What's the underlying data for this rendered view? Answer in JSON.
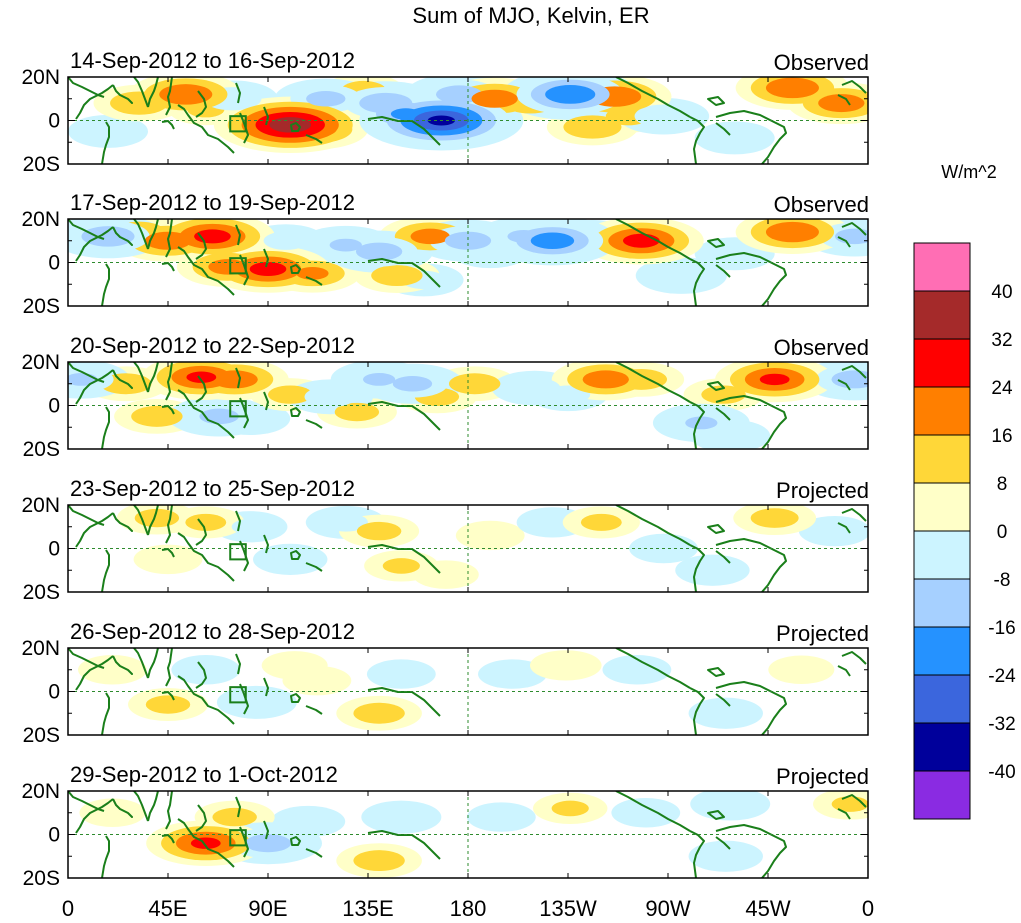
{
  "chart_data": {
    "type": "heatmap",
    "title": "Sum of MJO, Kelvin, ER",
    "units_label": "W/m^2",
    "x_tick_labels": [
      "0",
      "45E",
      "90E",
      "135E",
      "180",
      "135W",
      "90W",
      "45W",
      "0"
    ],
    "x_tick_lons": [
      0,
      45,
      90,
      135,
      180,
      225,
      270,
      315,
      360
    ],
    "y_tick_labels": [
      "20N",
      "0",
      "20S"
    ],
    "y_tick_lats": [
      20,
      0,
      -20
    ],
    "colorbar": {
      "levels": [
        "40",
        "32",
        "24",
        "16",
        "8",
        "0",
        "-8",
        "-16",
        "-24",
        "-32",
        "-40"
      ],
      "colors": [
        "#ff6eb4",
        "#a52a2a",
        "#ff0000",
        "#ff7f00",
        "#ffd738",
        "#ffffc8",
        "#ccf4ff",
        "#a6d0ff",
        "#2592ff",
        "#3b66dd",
        "#00009b",
        "#8a2be2"
      ]
    },
    "panels": [
      {
        "date_range": "14-Sep-2012 to 16-Sep-2012",
        "label": "Observed"
      },
      {
        "date_range": "17-Sep-2012 to 19-Sep-2012",
        "label": "Observed"
      },
      {
        "date_range": "20-Sep-2012 to 22-Sep-2012",
        "label": "Observed"
      },
      {
        "date_range": "23-Sep-2012 to 25-Sep-2012",
        "label": "Projected"
      },
      {
        "date_range": "26-Sep-2012 to 28-Sep-2012",
        "label": "Projected"
      },
      {
        "date_range": "29-Sep-2012 to 1-Oct-2012",
        "label": "Projected"
      }
    ],
    "anomalies": [
      [
        {
          "lon": 32,
          "lat": 8,
          "v": 14
        },
        {
          "lon": 53,
          "lat": 12,
          "v": 22
        },
        {
          "lon": 62,
          "lat": 5,
          "v": 8
        },
        {
          "lon": 74,
          "lat": 10,
          "v": -14
        },
        {
          "lon": 88,
          "lat": 3,
          "v": 9
        },
        {
          "lon": 100,
          "lat": -2,
          "v": 36
        },
        {
          "lon": 112,
          "lat": -4,
          "v": 18
        },
        {
          "lon": 116,
          "lat": 10,
          "v": -18
        },
        {
          "lon": 133,
          "lat": 14,
          "v": 10
        },
        {
          "lon": 143,
          "lat": 8,
          "v": -22
        },
        {
          "lon": 152,
          "lat": 3,
          "v": -24
        },
        {
          "lon": 168,
          "lat": 0,
          "v": -40
        },
        {
          "lon": 176,
          "lat": 12,
          "v": -20
        },
        {
          "lon": 192,
          "lat": 10,
          "v": 20
        },
        {
          "lon": 208,
          "lat": 8,
          "v": 12
        },
        {
          "lon": 226,
          "lat": 12,
          "v": -30
        },
        {
          "lon": 246,
          "lat": 11,
          "v": 22
        },
        {
          "lon": 252,
          "lat": 2,
          "v": 10
        },
        {
          "lon": 236,
          "lat": -3,
          "v": 14
        },
        {
          "lon": 268,
          "lat": 2,
          "v": -14
        },
        {
          "lon": 300,
          "lat": -8,
          "v": -10
        },
        {
          "lon": 326,
          "lat": 15,
          "v": 22
        },
        {
          "lon": 348,
          "lat": 8,
          "v": 20
        },
        {
          "lon": 18,
          "lat": -5,
          "v": -10
        }
      ],
      [
        {
          "lon": 18,
          "lat": 12,
          "v": -22
        },
        {
          "lon": 32,
          "lat": 14,
          "v": 12
        },
        {
          "lon": 45,
          "lat": 10,
          "v": 20
        },
        {
          "lon": 65,
          "lat": 12,
          "v": 26
        },
        {
          "lon": 72,
          "lat": -2,
          "v": 18
        },
        {
          "lon": 90,
          "lat": -3,
          "v": 26
        },
        {
          "lon": 98,
          "lat": 10,
          "v": -10
        },
        {
          "lon": 110,
          "lat": -5,
          "v": 16
        },
        {
          "lon": 125,
          "lat": 8,
          "v": -16
        },
        {
          "lon": 140,
          "lat": 5,
          "v": -20
        },
        {
          "lon": 148,
          "lat": -6,
          "v": 12
        },
        {
          "lon": 163,
          "lat": 12,
          "v": 18
        },
        {
          "lon": 180,
          "lat": 10,
          "v": -20
        },
        {
          "lon": 190,
          "lat": 5,
          "v": -10
        },
        {
          "lon": 205,
          "lat": 12,
          "v": -16
        },
        {
          "lon": 218,
          "lat": 10,
          "v": -28
        },
        {
          "lon": 236,
          "lat": 12,
          "v": -10
        },
        {
          "lon": 258,
          "lat": 10,
          "v": 26
        },
        {
          "lon": 276,
          "lat": -6,
          "v": -14
        },
        {
          "lon": 300,
          "lat": 4,
          "v": -10
        },
        {
          "lon": 326,
          "lat": 14,
          "v": 22
        },
        {
          "lon": 354,
          "lat": 12,
          "v": -18
        },
        {
          "lon": 160,
          "lat": -8,
          "v": -10
        }
      ],
      [
        {
          "lon": 6,
          "lat": 12,
          "v": -16
        },
        {
          "lon": 26,
          "lat": 10,
          "v": 12
        },
        {
          "lon": 40,
          "lat": -5,
          "v": 12
        },
        {
          "lon": 60,
          "lat": 13,
          "v": 24
        },
        {
          "lon": 75,
          "lat": 12,
          "v": 20
        },
        {
          "lon": 68,
          "lat": -5,
          "v": -18
        },
        {
          "lon": 82,
          "lat": -6,
          "v": -10
        },
        {
          "lon": 100,
          "lat": 5,
          "v": 10
        },
        {
          "lon": 118,
          "lat": 4,
          "v": -12
        },
        {
          "lon": 130,
          "lat": -3,
          "v": 10
        },
        {
          "lon": 140,
          "lat": 12,
          "v": -16
        },
        {
          "lon": 155,
          "lat": 10,
          "v": -18
        },
        {
          "lon": 166,
          "lat": 4,
          "v": 10
        },
        {
          "lon": 183,
          "lat": 10,
          "v": 12
        },
        {
          "lon": 210,
          "lat": 8,
          "v": -12
        },
        {
          "lon": 225,
          "lat": 5,
          "v": -10
        },
        {
          "lon": 242,
          "lat": 12,
          "v": 20
        },
        {
          "lon": 258,
          "lat": 12,
          "v": 12
        },
        {
          "lon": 285,
          "lat": -8,
          "v": -16
        },
        {
          "lon": 295,
          "lat": 5,
          "v": 10
        },
        {
          "lon": 318,
          "lat": 12,
          "v": 24
        },
        {
          "lon": 354,
          "lat": 12,
          "v": -20
        },
        {
          "lon": 298,
          "lat": -14,
          "v": -10
        }
      ],
      [
        {
          "lon": 40,
          "lat": 14,
          "v": 10
        },
        {
          "lon": 62,
          "lat": 12,
          "v": 9
        },
        {
          "lon": 45,
          "lat": -5,
          "v": 6
        },
        {
          "lon": 82,
          "lat": 10,
          "v": -8
        },
        {
          "lon": 100,
          "lat": -5,
          "v": -8
        },
        {
          "lon": 125,
          "lat": 12,
          "v": -10
        },
        {
          "lon": 140,
          "lat": 8,
          "v": 10
        },
        {
          "lon": 150,
          "lat": -8,
          "v": 8
        },
        {
          "lon": 190,
          "lat": 6,
          "v": 6
        },
        {
          "lon": 218,
          "lat": 12,
          "v": -7
        },
        {
          "lon": 240,
          "lat": 12,
          "v": 9
        },
        {
          "lon": 268,
          "lat": 0,
          "v": -6
        },
        {
          "lon": 290,
          "lat": -10,
          "v": -8
        },
        {
          "lon": 318,
          "lat": 14,
          "v": 11
        },
        {
          "lon": 345,
          "lat": 8,
          "v": -7
        },
        {
          "lon": 170,
          "lat": -12,
          "v": 5
        }
      ],
      [
        {
          "lon": 20,
          "lat": 10,
          "v": 6
        },
        {
          "lon": 45,
          "lat": -6,
          "v": 10
        },
        {
          "lon": 62,
          "lat": 10,
          "v": -6
        },
        {
          "lon": 85,
          "lat": -5,
          "v": -10
        },
        {
          "lon": 112,
          "lat": 5,
          "v": 6
        },
        {
          "lon": 140,
          "lat": -10,
          "v": 12
        },
        {
          "lon": 150,
          "lat": 8,
          "v": -6
        },
        {
          "lon": 200,
          "lat": 8,
          "v": -6
        },
        {
          "lon": 224,
          "lat": 12,
          "v": 7
        },
        {
          "lon": 256,
          "lat": 10,
          "v": -6
        },
        {
          "lon": 296,
          "lat": -10,
          "v": -8
        },
        {
          "lon": 330,
          "lat": 10,
          "v": 5
        },
        {
          "lon": 102,
          "lat": 12,
          "v": 5
        }
      ],
      [
        {
          "lon": 20,
          "lat": 10,
          "v": 5
        },
        {
          "lon": 62,
          "lat": -4,
          "v": 24
        },
        {
          "lon": 75,
          "lat": 8,
          "v": 10
        },
        {
          "lon": 90,
          "lat": -4,
          "v": -20
        },
        {
          "lon": 108,
          "lat": 6,
          "v": -8
        },
        {
          "lon": 140,
          "lat": -12,
          "v": 12
        },
        {
          "lon": 150,
          "lat": 8,
          "v": -10
        },
        {
          "lon": 195,
          "lat": 8,
          "v": -6
        },
        {
          "lon": 226,
          "lat": 12,
          "v": 8
        },
        {
          "lon": 260,
          "lat": 10,
          "v": -6
        },
        {
          "lon": 298,
          "lat": 14,
          "v": -10
        },
        {
          "lon": 296,
          "lat": -10,
          "v": -8
        },
        {
          "lon": 352,
          "lat": 14,
          "v": 8
        }
      ]
    ]
  }
}
